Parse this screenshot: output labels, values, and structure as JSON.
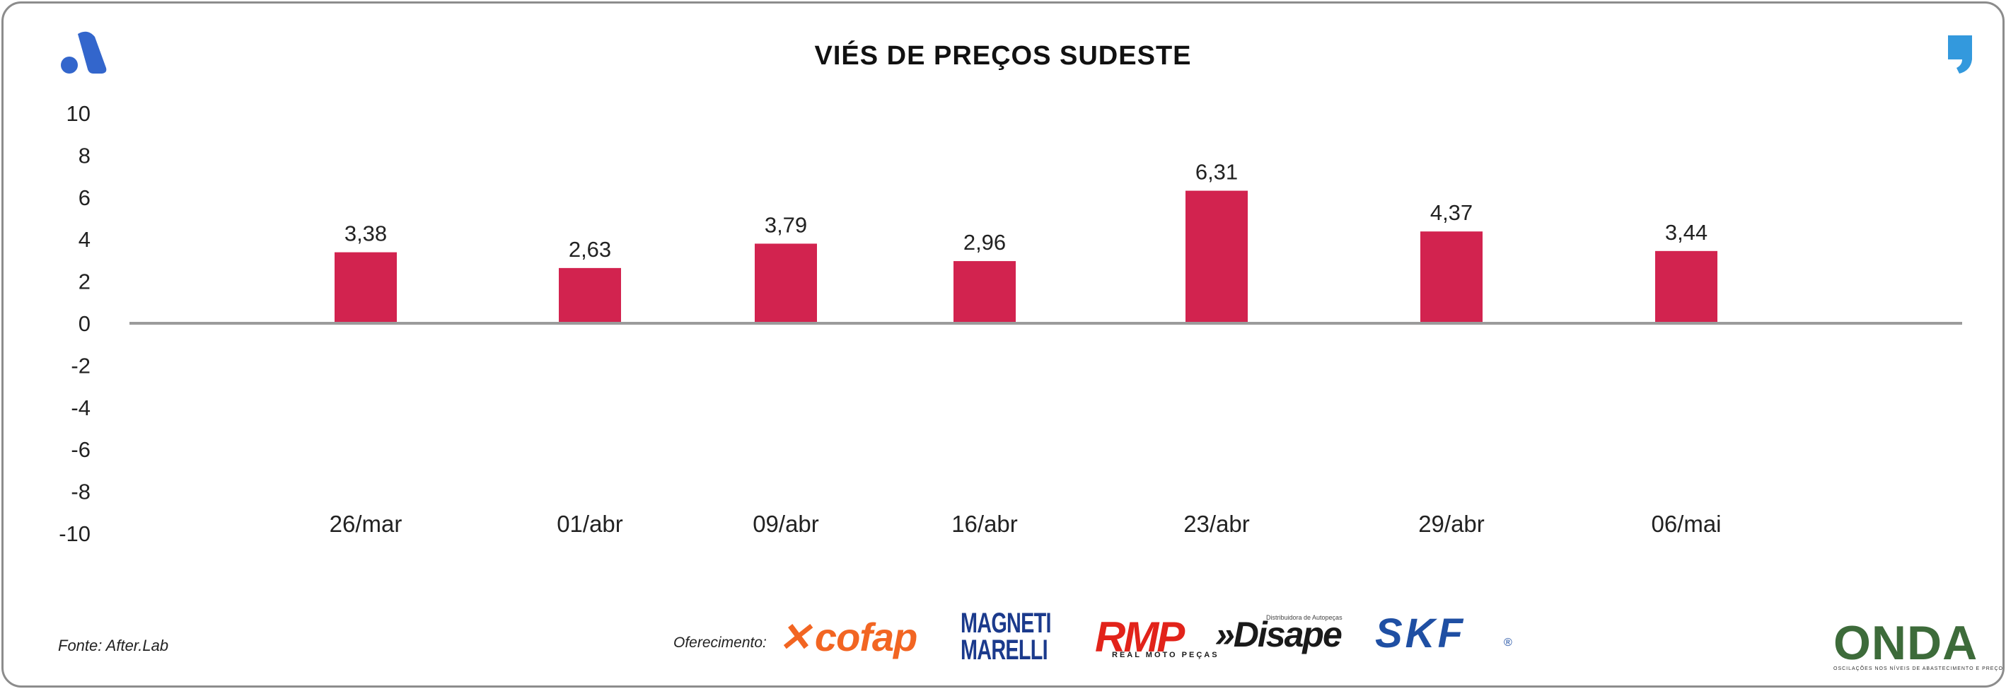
{
  "title": "VIÉS DE PREÇOS SUDESTE",
  "source": "Fonte: After.Lab",
  "offer_label": "Oferecimento:",
  "sponsors": {
    "cofap": "cofap",
    "magneti_line1": "MAGNETI",
    "magneti_line2": "MARELLI",
    "rmp": "RMP",
    "rmp_sub": "REAL MOTO PEÇAS",
    "disape": "»Disape",
    "disape_sub": "Distribuidora de Autopeças",
    "skf": "SKF",
    "skf_reg": "®",
    "onda": "ONDA",
    "onda_sub": "OSCILAÇÕES NOS NÍVEIS DE ABASTECIMENTO E PREÇO"
  },
  "colors": {
    "bar": "#d2234f",
    "axis": "#9b9b9b",
    "logo_left": "#3366cc",
    "logo_right": "#3399dd",
    "cofap": "#f26522",
    "magneti": "#1b3a8c",
    "rmp": "#e2231a",
    "disape": "#1a1a1a",
    "skf": "#1f4fa3",
    "onda": "#3d6b3a"
  },
  "icons": {
    "top_left": "brand-a-logo-icon",
    "top_right": "comma-logo-icon"
  },
  "chart_data": {
    "type": "bar",
    "categories": [
      "26/mar",
      "01/abr",
      "09/abr",
      "16/abr",
      "23/abr",
      "29/abr",
      "06/mai"
    ],
    "values": [
      3.38,
      2.63,
      3.79,
      2.96,
      6.31,
      4.37,
      3.44
    ],
    "value_labels": [
      "3,38",
      "2,63",
      "3,79",
      "2,96",
      "6,31",
      "4,37",
      "3,44"
    ],
    "yticks": [
      "10",
      "8",
      "6",
      "4",
      "2",
      "0",
      "-2",
      "-4",
      "-6",
      "-8",
      "-10"
    ],
    "ylim": [
      -10,
      10
    ],
    "title": "VIÉS DE PREÇOS SUDESTE",
    "xlabel": "",
    "ylabel": "",
    "grid": false,
    "legend": "none"
  }
}
